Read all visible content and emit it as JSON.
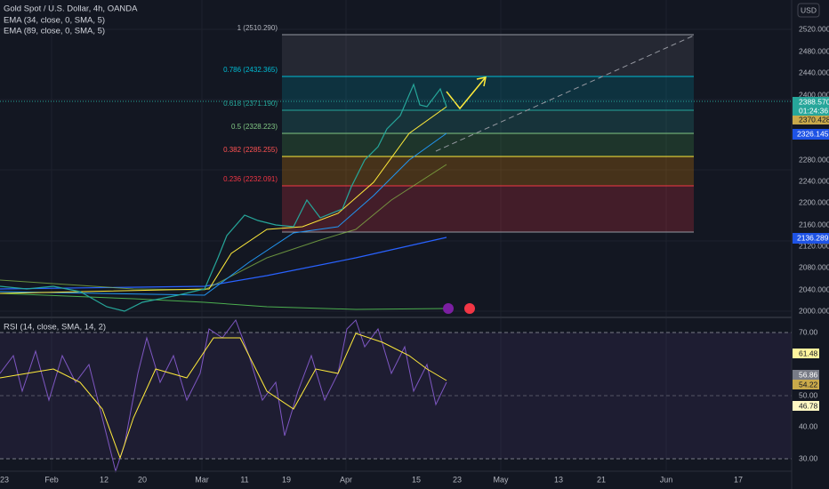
{
  "header": {
    "symbol": "Gold Spot / U.S. Dollar, 4h, OANDA",
    "indicators": [
      "EMA (34, close, 0, SMA, 5)",
      "EMA (89, close, 0, SMA, 5)"
    ],
    "currency": "USD"
  },
  "fib": {
    "levels": [
      "1 (2510.290)",
      "0.786 (2432.365)",
      "0.618 (2371.190)",
      "0.5 (2328.223)",
      "0.382 (2285.255)",
      "0.236 (2232.091)"
    ]
  },
  "price_axis": {
    "labels": [
      "2520.000",
      "2480.000",
      "2440.000",
      "2400.000",
      "2280.000",
      "2240.000",
      "2200.000",
      "2160.000",
      "2120.000",
      "2080.000",
      "2040.000",
      "2000.000"
    ],
    "tags": [
      "2388.570",
      "01:24:36",
      "2370.428",
      "2326.145",
      "2136.289"
    ]
  },
  "rsi": {
    "title": "RSI (14, close, SMA, 14, 2)",
    "axis_labels": [
      "70.00",
      "50.00",
      "40.00",
      "30.00"
    ],
    "tags": [
      "61.48",
      "56.86",
      "54.22",
      "46.78"
    ]
  },
  "time_axis": {
    "labels": [
      "23",
      "Feb",
      "12",
      "20",
      "Mar",
      "11",
      "19",
      "Apr",
      "15",
      "23",
      "May",
      "13",
      "21",
      "Jun",
      "17"
    ]
  }
}
